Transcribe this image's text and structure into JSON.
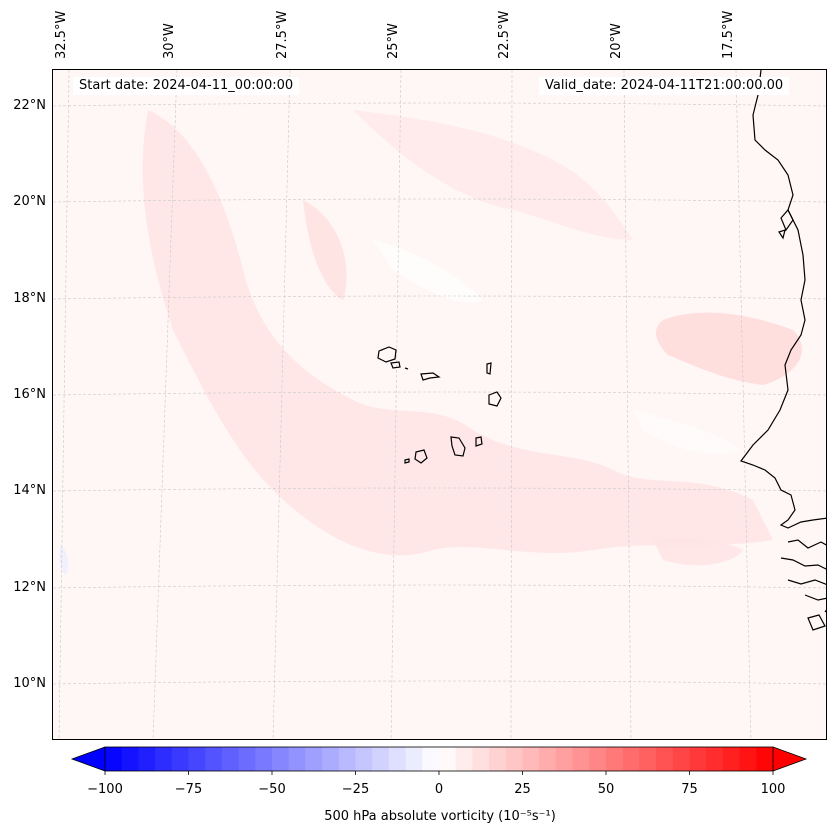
{
  "map": {
    "start_date_label": "Start date: 2024-04-11_00:00:00",
    "valid_date_label": "Valid_date: 2024-04-11T21:00:00.00",
    "longitude_labels": [
      "32.5°W",
      "30°W",
      "27.5°W",
      "25°W",
      "22.5°W",
      "20°W",
      "17.5°W"
    ],
    "latitude_labels": [
      "22°N",
      "20°N",
      "18°N",
      "16°N",
      "14°N",
      "12°N",
      "10°N"
    ],
    "ocean_color": "#fff6f6",
    "coastline_color": "#000000",
    "gridline_color": "#c8c8c8"
  },
  "colorbar": {
    "label": "500 hPa absolute vorticity (10⁻⁵s⁻¹)",
    "tick_labels": [
      "−100",
      "−75",
      "−50",
      "−25",
      "0",
      "25",
      "50",
      "75",
      "100"
    ],
    "min": -100,
    "max": 100,
    "levels": 41,
    "min_color": "#0000ff",
    "mid_color": "#ffffff",
    "max_color": "#ff0000"
  }
}
